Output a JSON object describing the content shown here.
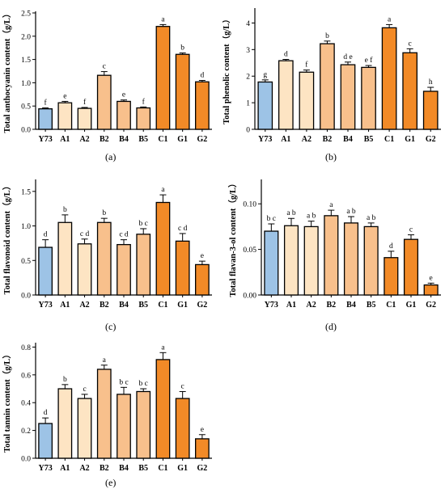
{
  "colors": {
    "Y73": "#9dc3e6",
    "A1": "#fde4c3",
    "A2": "#fde4c3",
    "B2": "#f8c08c",
    "B4": "#f8c08c",
    "B5": "#f8c08c",
    "C1": "#f28a27",
    "G1": "#f28a27",
    "G2": "#f28a27"
  },
  "chart_data": [
    {
      "panel_label": "(a)",
      "type": "bar",
      "ylabel": "Total anthocyanin content（g/L）",
      "categories": [
        "Y73",
        "A1",
        "A2",
        "B2",
        "B4",
        "B5",
        "C1",
        "G1",
        "G2"
      ],
      "values": [
        0.44,
        0.57,
        0.45,
        1.16,
        0.6,
        0.46,
        2.21,
        1.61,
        1.02
      ],
      "errors": [
        0.02,
        0.03,
        0.02,
        0.08,
        0.03,
        0.02,
        0.04,
        0.03,
        0.03
      ],
      "letters": [
        "f",
        "e",
        "f",
        "c",
        "e",
        "f",
        "a",
        "b",
        "d"
      ],
      "ylim": [
        0,
        2.5
      ],
      "yticks": [
        0,
        0.5,
        1.0,
        1.5,
        2.0,
        2.5
      ],
      "ytick_labels": [
        "0.0",
        "0.5",
        "1.0",
        "1.5",
        "2.0",
        "2.5"
      ]
    },
    {
      "panel_label": "(b)",
      "type": "bar",
      "ylabel": "Total phenolic content（g/L）",
      "categories": [
        "Y73",
        "A1",
        "A2",
        "B2",
        "B4",
        "B5",
        "C1",
        "G1",
        "G2"
      ],
      "values": [
        1.78,
        2.58,
        2.15,
        3.22,
        2.43,
        2.33,
        3.82,
        2.88,
        1.43
      ],
      "errors": [
        0.08,
        0.05,
        0.08,
        0.1,
        0.1,
        0.07,
        0.12,
        0.15,
        0.15
      ],
      "letters": [
        "g",
        "d",
        "f",
        "b",
        "d e",
        "e f",
        "a",
        "c",
        "h"
      ],
      "ylim": [
        0,
        4.5
      ],
      "yticks": [
        0,
        1,
        2,
        3,
        4
      ],
      "ytick_labels": [
        "0",
        "1",
        "2",
        "3",
        "4"
      ]
    },
    {
      "panel_label": "(c)",
      "type": "bar",
      "ylabel": "Total flavonoid content（g/L）",
      "categories": [
        "Y73",
        "A1",
        "A2",
        "B2",
        "B4",
        "B5",
        "C1",
        "G1",
        "G2"
      ],
      "values": [
        0.69,
        1.05,
        0.74,
        1.05,
        0.73,
        0.88,
        1.34,
        0.78,
        0.44
      ],
      "errors": [
        0.11,
        0.11,
        0.07,
        0.06,
        0.07,
        0.08,
        0.11,
        0.11,
        0.05
      ],
      "letters": [
        "d",
        "b",
        "c d",
        "b",
        "c d",
        "b c",
        "a",
        "c d",
        "e"
      ],
      "ylim": [
        0,
        1.65
      ],
      "yticks": [
        0,
        0.5,
        1.0,
        1.5
      ],
      "ytick_labels": [
        "0.0",
        "0.5",
        "1.0",
        "1.5"
      ]
    },
    {
      "panel_label": "(d)",
      "type": "bar",
      "ylabel": "Total flavan-3-ol content（g/L）",
      "categories": [
        "Y73",
        "A1",
        "A2",
        "B2",
        "B4",
        "B5",
        "C1",
        "G1",
        "G2"
      ],
      "values": [
        0.07,
        0.076,
        0.075,
        0.087,
        0.079,
        0.075,
        0.041,
        0.061,
        0.011
      ],
      "errors": [
        0.008,
        0.008,
        0.006,
        0.006,
        0.007,
        0.004,
        0.007,
        0.005,
        0.002
      ],
      "letters": [
        "b c",
        "a b",
        "a b",
        "a",
        "a b",
        "a b",
        "d",
        "c",
        "e"
      ],
      "ylim": [
        0,
        0.125
      ],
      "yticks": [
        0,
        0.05,
        0.1
      ],
      "ytick_labels": [
        "0.00",
        "0.05",
        "0.10"
      ]
    },
    {
      "panel_label": "(e)",
      "type": "bar",
      "ylabel": "Total tannin content（g/L）",
      "categories": [
        "Y73",
        "A1",
        "A2",
        "B2",
        "B4",
        "B5",
        "C1",
        "G1",
        "G2"
      ],
      "values": [
        0.25,
        0.5,
        0.43,
        0.64,
        0.46,
        0.48,
        0.71,
        0.43,
        0.14
      ],
      "errors": [
        0.04,
        0.03,
        0.03,
        0.03,
        0.05,
        0.02,
        0.05,
        0.05,
        0.03
      ],
      "letters": [
        "d",
        "b",
        "c",
        "a",
        "b c",
        "b c",
        "a",
        "c",
        "e"
      ],
      "ylim": [
        0,
        0.82
      ],
      "yticks": [
        0,
        0.2,
        0.4,
        0.6,
        0.8
      ],
      "ytick_labels": [
        "0.0",
        "0.2",
        "0.4",
        "0.6",
        "0.8"
      ]
    }
  ]
}
